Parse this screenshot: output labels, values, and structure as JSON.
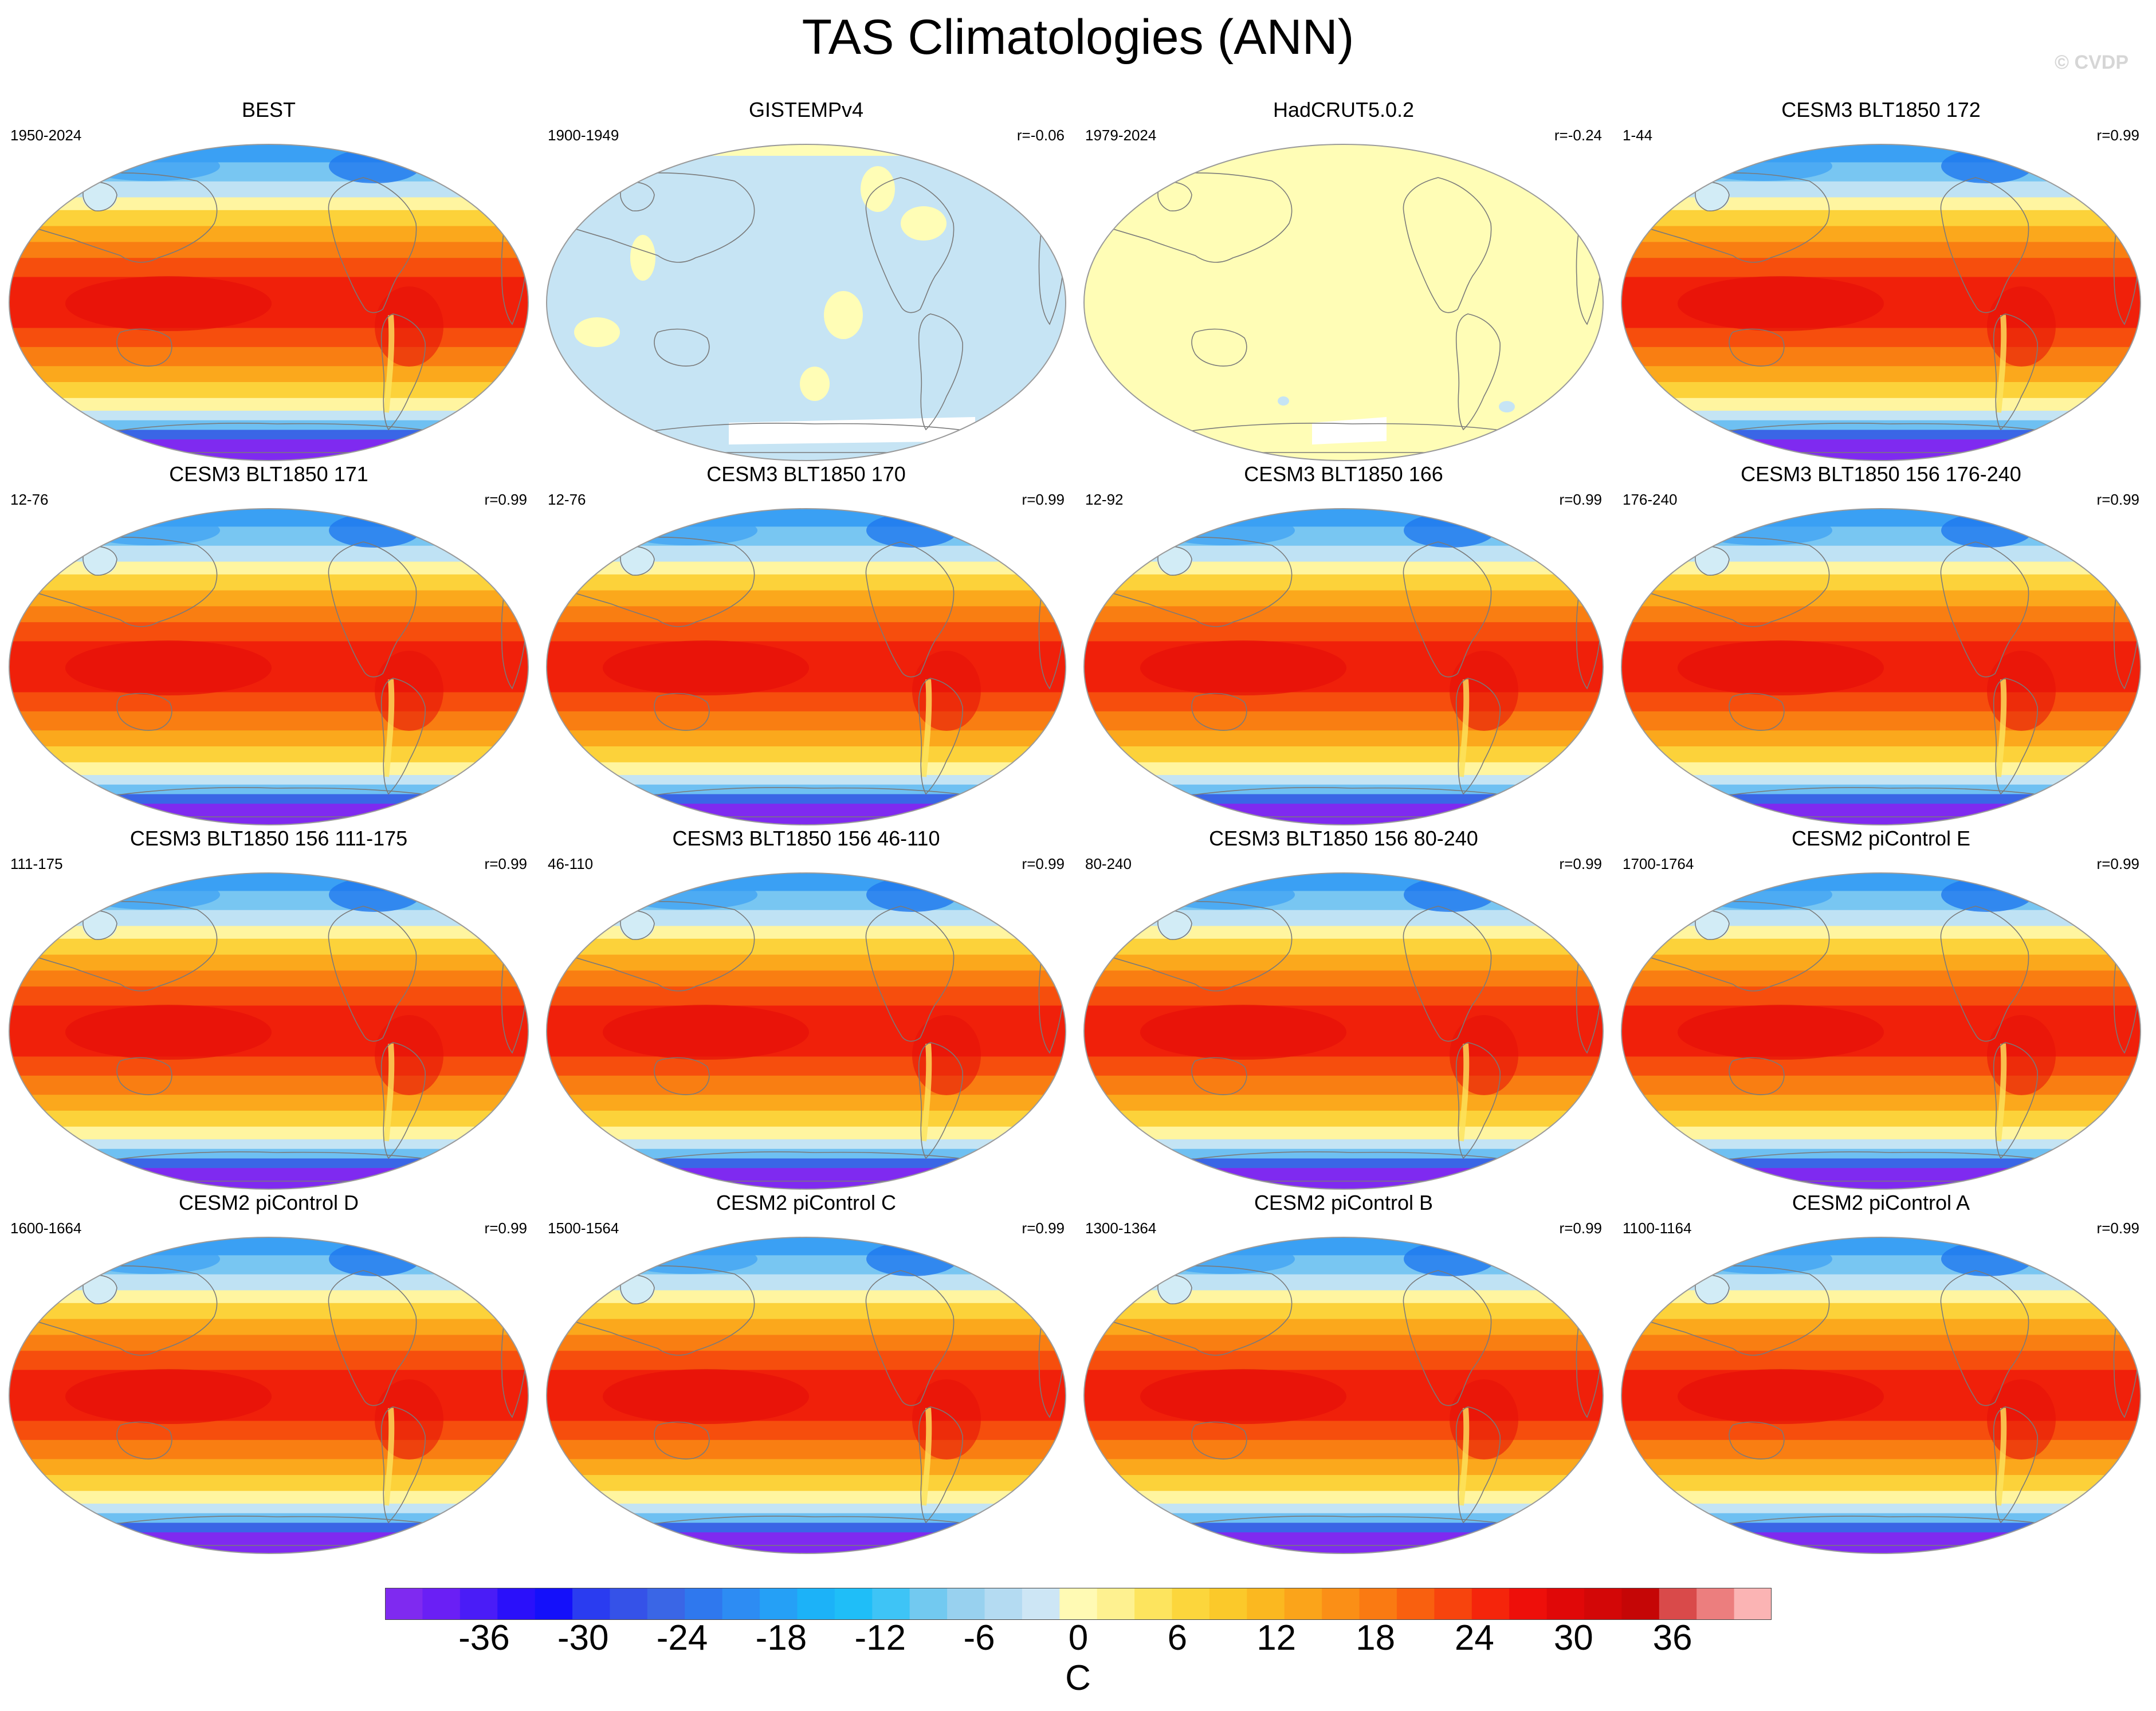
{
  "title": "TAS Climatologies (ANN)",
  "watermark": "© CVDP",
  "panels": [
    {
      "name": "BEST",
      "period": "1950-2024",
      "corr": "",
      "style": "model"
    },
    {
      "name": "GISTEMPv4",
      "period": "1900-1949",
      "corr": "r=-0.06",
      "style": "gistemp"
    },
    {
      "name": "HadCRUT5.0.2",
      "period": "1979-2024",
      "corr": "r=-0.24",
      "style": "hadcrut"
    },
    {
      "name": "CESM3 BLT1850 172",
      "period": "1-44",
      "corr": "r=0.99",
      "style": "model"
    },
    {
      "name": "CESM3 BLT1850 171",
      "period": "12-76",
      "corr": "r=0.99",
      "style": "model"
    },
    {
      "name": "CESM3 BLT1850 170",
      "period": "12-76",
      "corr": "r=0.99",
      "style": "model"
    },
    {
      "name": "CESM3 BLT1850 166",
      "period": "12-92",
      "corr": "r=0.99",
      "style": "model"
    },
    {
      "name": "CESM3 BLT1850 156 176-240",
      "period": "176-240",
      "corr": "r=0.99",
      "style": "model"
    },
    {
      "name": "CESM3 BLT1850 156 111-175",
      "period": "111-175",
      "corr": "r=0.99",
      "style": "model"
    },
    {
      "name": "CESM3 BLT1850 156 46-110",
      "period": "46-110",
      "corr": "r=0.99",
      "style": "model"
    },
    {
      "name": "CESM3 BLT1850 156 80-240",
      "period": "80-240",
      "corr": "r=0.99",
      "style": "model"
    },
    {
      "name": "CESM2 piControl E",
      "period": "1700-1764",
      "corr": "r=0.99",
      "style": "model"
    },
    {
      "name": "CESM2 piControl D",
      "period": "1600-1664",
      "corr": "r=0.99",
      "style": "model"
    },
    {
      "name": "CESM2 piControl C",
      "period": "1500-1564",
      "corr": "r=0.99",
      "style": "model"
    },
    {
      "name": "CESM2 piControl B",
      "period": "1300-1364",
      "corr": "r=0.99",
      "style": "model"
    },
    {
      "name": "CESM2 piControl A",
      "period": "1100-1164",
      "corr": "r=0.99",
      "style": "model"
    }
  ],
  "colorbar": {
    "units": "C",
    "tick_labels": [
      "-36",
      "-30",
      "-24",
      "-18",
      "-12",
      "-6",
      "0",
      "6",
      "12",
      "18",
      "24",
      "30",
      "36"
    ],
    "tick_values": [
      -36,
      -30,
      -24,
      -18,
      -12,
      -6,
      0,
      6,
      12,
      18,
      24,
      30,
      36
    ],
    "min": -42,
    "max": 42,
    "colors": [
      "#7f2af0",
      "#6a1ff5",
      "#4a1cf7",
      "#2a10fa",
      "#1410fa",
      "#2a3cf0",
      "#3552e8",
      "#3a66e6",
      "#2f78ee",
      "#2d8cf3",
      "#25a0f6",
      "#1cb2f8",
      "#1fbef8",
      "#3ec4f6",
      "#72c9f0",
      "#98d1ef",
      "#b4dbf2",
      "#cde6f5",
      "#fffab4",
      "#fef190",
      "#fde45e",
      "#fcd63c",
      "#fbc92a",
      "#fbb820",
      "#fba41a",
      "#fb8f16",
      "#fa7a12",
      "#f9600f",
      "#f7440d",
      "#f5250b",
      "#ee0f0a",
      "#e00808",
      "#d30707",
      "#c50606",
      "#d94a4a",
      "#ec7e7e",
      "#fbb4b4"
    ]
  },
  "palette": {
    "coast": "#7a7a7a",
    "border": "#9a9a9a",
    "gistemp_fill": "#c6e4f4",
    "hadcrut_fill": "#fffdb6"
  }
}
